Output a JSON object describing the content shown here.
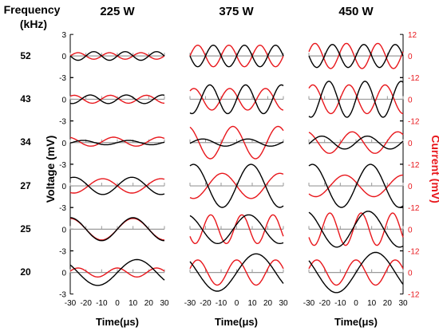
{
  "colors": {
    "voltage": "#000000",
    "current": "#e8171c",
    "zero_line": "#9a9a9a",
    "axis": "#000000"
  },
  "row_header": [
    "Frequency",
    "(kHz)"
  ],
  "chart_data": {
    "type": "line",
    "layout": "grid",
    "columns": [
      "225 W",
      "375 W",
      "450 W"
    ],
    "rows": [
      "52",
      "43",
      "34",
      "27",
      "25",
      "20"
    ],
    "xlabel": "Time(μs)",
    "ylabel_left": "Voltage (mV)",
    "ylabel_right": "Current (mV)",
    "xlim": [
      -30,
      30
    ],
    "x_ticks": [
      -30,
      -20,
      -10,
      0,
      10,
      20,
      30
    ],
    "voltage_ticks": [
      "3",
      "0",
      "-3"
    ],
    "current_ticks": [
      "12",
      "0",
      "-12"
    ],
    "voltage_ylim": [
      -3,
      3
    ],
    "current_ylim": [
      -12,
      12
    ],
    "panels": [
      [
        {
          "voltage": {
            "amp": 0.6,
            "period": 20,
            "phase": 0,
            "offset": 0
          },
          "current": {
            "amp": 1.8,
            "period": 20,
            "phase": 180,
            "offset": 0
          }
        },
        {
          "voltage": {
            "amp": 0.6,
            "period": 23,
            "phase": 0,
            "offset": 0
          },
          "current": {
            "amp": 2.2,
            "period": 23,
            "phase": 160,
            "offset": 0
          }
        },
        {
          "voltage": {
            "amp": 0.3,
            "period": 29,
            "phase": 0,
            "offset": 0
          },
          "current": {
            "amp": 2.5,
            "period": 29,
            "phase": 120,
            "offset": 0.5
          }
        },
        {
          "voltage": {
            "amp": 1.2,
            "period": 37,
            "phase": 0,
            "offset": 0
          },
          "current": {
            "amp": 4.0,
            "period": 37,
            "phase": 180,
            "offset": 0
          }
        },
        {
          "voltage": {
            "amp": 1.6,
            "period": 40,
            "phase": 0,
            "offset": 0
          },
          "current": {
            "amp": 6.0,
            "period": 40,
            "phase": 0,
            "offset": 0
          }
        },
        {
          "voltage": {
            "amp": 1.8,
            "period": 50,
            "phase": 0,
            "offset": 0
          },
          "current": {
            "amp": 2.5,
            "period": 25,
            "phase": 90,
            "offset": 0
          }
        }
      ],
      [
        {
          "voltage": {
            "amp": 1.5,
            "period": 20,
            "phase": 0,
            "offset": 0
          },
          "current": {
            "amp": 6.0,
            "period": 20,
            "phase": 180,
            "offset": 0
          }
        },
        {
          "voltage": {
            "amp": 2.0,
            "period": 23,
            "phase": 0,
            "offset": 0
          },
          "current": {
            "amp": 6.0,
            "period": 23,
            "phase": 160,
            "offset": 0
          }
        },
        {
          "voltage": {
            "amp": 0.5,
            "period": 29,
            "phase": 0,
            "offset": 0
          },
          "current": {
            "amp": 9.0,
            "period": 29,
            "phase": 120,
            "offset": 0
          }
        },
        {
          "voltage": {
            "amp": 3.0,
            "period": 37,
            "phase": 0,
            "offset": 0
          },
          "current": {
            "amp": 7.0,
            "period": 37,
            "phase": 180,
            "offset": 0
          }
        },
        {
          "voltage": {
            "amp": 2.0,
            "period": 40,
            "phase": 20,
            "offset": 0
          },
          "current": {
            "amp": 8.0,
            "period": 20,
            "phase": 30,
            "offset": 0
          }
        },
        {
          "voltage": {
            "amp": 2.6,
            "period": 50,
            "phase": 0,
            "offset": 0
          },
          "current": {
            "amp": 7.0,
            "period": 25,
            "phase": 90,
            "offset": 0
          }
        }
      ],
      [
        {
          "voltage": {
            "amp": 1.6,
            "period": 20,
            "phase": 0,
            "offset": 0
          },
          "current": {
            "amp": 7.0,
            "period": 20,
            "phase": 200,
            "offset": 0
          }
        },
        {
          "voltage": {
            "amp": 2.5,
            "period": 23,
            "phase": 0,
            "offset": 0
          },
          "current": {
            "amp": 8.0,
            "period": 23,
            "phase": 160,
            "offset": 0
          }
        },
        {
          "voltage": {
            "amp": 0.9,
            "period": 29,
            "phase": 0,
            "offset": 0
          },
          "current": {
            "amp": 6.0,
            "period": 29,
            "phase": 120,
            "offset": 0
          }
        },
        {
          "voltage": {
            "amp": 3.0,
            "period": 37,
            "phase": 0,
            "offset": 0
          },
          "current": {
            "amp": 6.0,
            "period": 37,
            "phase": 160,
            "offset": 0
          }
        },
        {
          "voltage": {
            "amp": 2.5,
            "period": 40,
            "phase": 20,
            "offset": 0
          },
          "current": {
            "amp": 9.0,
            "period": 20,
            "phase": 30,
            "offset": 0
          }
        },
        {
          "voltage": {
            "amp": 2.8,
            "period": 50,
            "phase": 0,
            "offset": 0
          },
          "current": {
            "amp": 7.0,
            "period": 25,
            "phase": 90,
            "offset": 0
          }
        }
      ]
    ]
  }
}
